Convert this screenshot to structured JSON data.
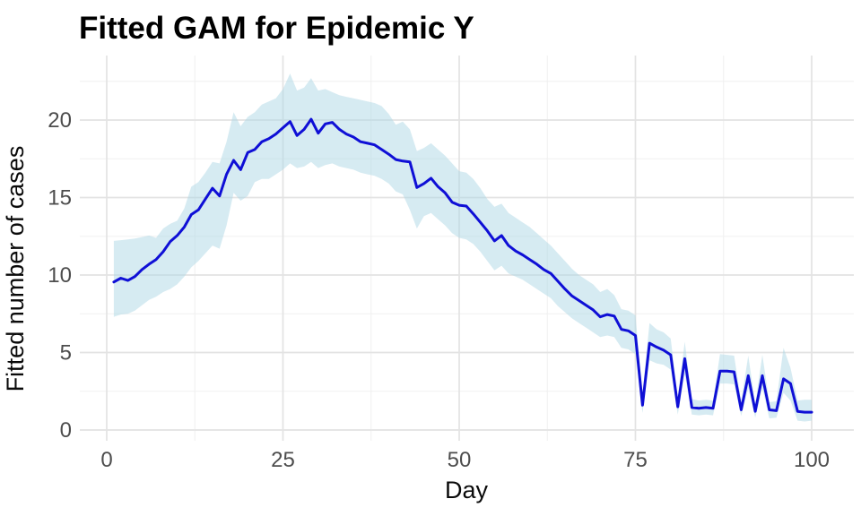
{
  "window": {
    "kind": "static chart figure (ggplot2 theme_minimal style)",
    "background": "#FFFFFF"
  },
  "colors": {
    "fitted_line": "#0F0FD6",
    "ribbon_fill": "#ADD8E6",
    "ribbon_opacity": 0.5,
    "grid_major": "#E3E3E3",
    "grid_minor": "#F0F0F0",
    "tick_text": "#4D4D4D",
    "title_text": "#000000",
    "background": "#FFFFFF"
  },
  "chart_data": {
    "type": "line",
    "title": "Fitted GAM for Epidemic Y",
    "xlabel": "Day",
    "ylabel": "Fitted number of cases",
    "legend": "none",
    "grid": "major and minor gridlines, light gray on white, no panel border, no tick marks",
    "x_ticks": [
      0,
      25,
      50,
      75,
      100
    ],
    "y_ticks": [
      0,
      5,
      10,
      15,
      20
    ],
    "x_minor": [
      12.5,
      37.5,
      62.5,
      87.5
    ],
    "y_minor": [
      2.5,
      7.5,
      12.5,
      17.5,
      22.5
    ],
    "xlim": [
      -4,
      106
    ],
    "ylim": [
      -0.9,
      24.2
    ],
    "days": [
      1,
      2,
      3,
      4,
      5,
      6,
      7,
      8,
      9,
      10,
      11,
      12,
      13,
      14,
      15,
      16,
      17,
      18,
      19,
      20,
      21,
      22,
      23,
      24,
      25,
      26,
      27,
      28,
      29,
      30,
      31,
      32,
      33,
      34,
      35,
      36,
      37,
      38,
      39,
      40,
      41,
      42,
      43,
      44,
      45,
      46,
      47,
      48,
      49,
      50,
      51,
      52,
      53,
      54,
      55,
      56,
      57,
      58,
      59,
      60,
      61,
      62,
      63,
      64,
      65,
      66,
      67,
      68,
      69,
      70,
      71,
      72,
      73,
      74,
      75,
      76,
      77,
      78,
      79,
      80,
      81,
      82,
      83,
      84,
      85,
      86,
      87,
      88,
      89,
      90,
      91,
      92,
      93,
      94,
      95,
      96,
      97,
      98,
      99,
      100
    ],
    "series": [
      {
        "name": "fitted",
        "geom": "line",
        "color": "#0F0FD6",
        "values": [
          9.55,
          9.8,
          9.65,
          9.9,
          10.35,
          10.7,
          11.0,
          11.5,
          12.15,
          12.55,
          13.1,
          13.9,
          14.2,
          14.9,
          15.6,
          15.1,
          16.5,
          17.4,
          16.8,
          17.9,
          18.1,
          18.6,
          18.8,
          19.1,
          19.5,
          19.9,
          19.0,
          19.4,
          20.05,
          19.15,
          19.75,
          19.85,
          19.4,
          19.1,
          18.9,
          18.6,
          18.5,
          18.4,
          18.1,
          17.8,
          17.45,
          17.35,
          17.3,
          15.65,
          15.9,
          16.25,
          15.7,
          15.3,
          14.7,
          14.5,
          14.45,
          13.95,
          13.4,
          12.85,
          12.2,
          12.55,
          11.9,
          11.55,
          11.3,
          11.0,
          10.7,
          10.35,
          10.1,
          9.6,
          9.1,
          8.65,
          8.35,
          8.05,
          7.75,
          7.3,
          7.45,
          7.35,
          6.5,
          6.4,
          6.1,
          1.6,
          5.6,
          5.35,
          5.15,
          4.85,
          1.5,
          4.6,
          1.45,
          1.4,
          1.45,
          1.4,
          3.8,
          3.8,
          3.75,
          1.3,
          3.5,
          1.2,
          3.5,
          1.3,
          1.25,
          3.3,
          3.0,
          1.2,
          1.15,
          1.15
        ]
      },
      {
        "name": "confidence ribbon",
        "geom": "area",
        "fill": "#ADD8E6",
        "lower": [
          7.3,
          7.45,
          7.5,
          7.7,
          8.05,
          8.4,
          8.6,
          8.9,
          9.1,
          9.4,
          9.9,
          10.5,
          10.9,
          11.4,
          11.9,
          11.7,
          13.2,
          15.3,
          14.8,
          15.1,
          16.0,
          16.2,
          16.2,
          16.5,
          16.8,
          17.2,
          16.9,
          17.0,
          17.3,
          16.9,
          17.1,
          17.2,
          17.0,
          16.9,
          16.8,
          16.6,
          16.5,
          16.4,
          16.2,
          15.9,
          15.4,
          15.2,
          14.2,
          13.0,
          13.8,
          14.0,
          13.6,
          13.2,
          12.7,
          12.4,
          12.3,
          12.0,
          11.5,
          10.9,
          10.3,
          10.6,
          10.1,
          9.9,
          9.7,
          9.4,
          9.1,
          8.8,
          8.5,
          8.0,
          7.6,
          7.2,
          6.9,
          6.6,
          6.3,
          6.0,
          6.1,
          6.0,
          5.3,
          5.2,
          4.9,
          1.1,
          4.5,
          4.3,
          4.2,
          3.9,
          1.0,
          3.6,
          1.0,
          0.95,
          1.0,
          0.95,
          3.0,
          3.0,
          2.95,
          0.9,
          2.7,
          0.8,
          2.7,
          0.75,
          0.8,
          2.4,
          1.9,
          0.6,
          0.55,
          0.6
        ],
        "upper": [
          12.2,
          12.25,
          12.3,
          12.35,
          12.45,
          12.55,
          12.4,
          13.0,
          13.3,
          13.5,
          14.3,
          15.7,
          16.0,
          16.6,
          17.3,
          17.2,
          18.6,
          20.5,
          19.6,
          20.2,
          20.5,
          21.0,
          21.2,
          21.4,
          22.0,
          23.0,
          21.9,
          22.1,
          22.7,
          21.9,
          22.0,
          21.8,
          21.6,
          21.5,
          21.4,
          21.3,
          21.2,
          21.1,
          20.9,
          20.4,
          19.7,
          19.9,
          19.4,
          18.0,
          18.2,
          18.5,
          18.1,
          17.7,
          17.2,
          16.7,
          16.6,
          16.2,
          15.6,
          14.9,
          14.4,
          14.6,
          14.0,
          13.7,
          13.4,
          13.1,
          12.7,
          12.3,
          11.9,
          11.4,
          10.9,
          10.4,
          10.0,
          9.7,
          9.4,
          8.9,
          9.1,
          8.7,
          7.8,
          7.7,
          7.4,
          2.4,
          6.9,
          6.5,
          6.3,
          5.9,
          2.1,
          5.7,
          2.0,
          1.9,
          1.95,
          1.9,
          4.9,
          4.85,
          4.8,
          1.85,
          4.8,
          1.7,
          4.85,
          1.8,
          1.85,
          5.3,
          4.0,
          1.9,
          1.95,
          1.95
        ]
      }
    ]
  }
}
